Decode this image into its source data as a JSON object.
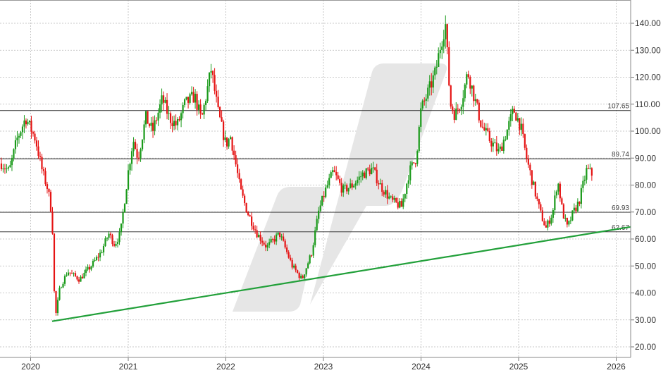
{
  "chart_data": {
    "type": "candlestick",
    "title": "",
    "xlabel": "",
    "ylabel": "",
    "x_ticks": [
      "2020",
      "2021",
      "2022",
      "2023",
      "2024",
      "2025",
      "2026"
    ],
    "x_range": [
      2019.7,
      2026.15
    ],
    "y_ticks": [
      "20.00",
      "30.00",
      "40.00",
      "50.00",
      "60.00",
      "70.00",
      "80.00",
      "90.00",
      "100.00",
      "110.00",
      "120.00",
      "130.00",
      "140.00"
    ],
    "ylim": [
      16,
      146
    ],
    "grid": true,
    "colors": {
      "up": "#1a9a1a",
      "down": "#e51414",
      "trend": "#22a03a",
      "level": "#222222",
      "grid": "#b8b8b8"
    },
    "horizontal_levels": [
      {
        "value": 107.65,
        "label": "107.65"
      },
      {
        "value": 89.74,
        "label": "89.74"
      },
      {
        "value": 69.93,
        "label": "69.93"
      },
      {
        "value": 62.67,
        "label": "62.67"
      }
    ],
    "trendline": {
      "x": [
        2020.22,
        2026.15
      ],
      "y": [
        29.5,
        64.5
      ]
    },
    "series": [
      {
        "price_path": [
          [
            2019.7,
            88
          ],
          [
            2019.78,
            85
          ],
          [
            2019.86,
            97
          ],
          [
            2019.95,
            105
          ],
          [
            2020.05,
            97
          ],
          [
            2020.12,
            85
          ],
          [
            2020.18,
            78
          ],
          [
            2020.22,
            68
          ],
          [
            2020.25,
            30
          ],
          [
            2020.3,
            42
          ],
          [
            2020.38,
            48
          ],
          [
            2020.5,
            45
          ],
          [
            2020.62,
            50
          ],
          [
            2020.72,
            55
          ],
          [
            2020.8,
            62
          ],
          [
            2020.86,
            58
          ],
          [
            2020.92,
            62
          ],
          [
            2021.0,
            85
          ],
          [
            2021.05,
            97
          ],
          [
            2021.1,
            90
          ],
          [
            2021.18,
            105
          ],
          [
            2021.25,
            100
          ],
          [
            2021.35,
            112
          ],
          [
            2021.42,
            105
          ],
          [
            2021.5,
            102
          ],
          [
            2021.58,
            110
          ],
          [
            2021.68,
            113
          ],
          [
            2021.75,
            104
          ],
          [
            2021.85,
            123
          ],
          [
            2021.92,
            107
          ],
          [
            2022.0,
            95
          ],
          [
            2022.05,
            98
          ],
          [
            2022.15,
            78
          ],
          [
            2022.22,
            70
          ],
          [
            2022.32,
            62
          ],
          [
            2022.42,
            57
          ],
          [
            2022.55,
            62
          ],
          [
            2022.68,
            50
          ],
          [
            2022.78,
            45
          ],
          [
            2022.88,
            55
          ],
          [
            2022.95,
            70
          ],
          [
            2023.02,
            78
          ],
          [
            2023.1,
            85
          ],
          [
            2023.2,
            78
          ],
          [
            2023.3,
            80
          ],
          [
            2023.4,
            84
          ],
          [
            2023.5,
            86
          ],
          [
            2023.58,
            80
          ],
          [
            2023.7,
            74
          ],
          [
            2023.8,
            72
          ],
          [
            2023.88,
            85
          ],
          [
            2023.95,
            90
          ],
          [
            2024.0,
            108
          ],
          [
            2024.08,
            115
          ],
          [
            2024.15,
            122
          ],
          [
            2024.2,
            132
          ],
          [
            2024.25,
            140
          ],
          [
            2024.3,
            110
          ],
          [
            2024.35,
            106
          ],
          [
            2024.42,
            112
          ],
          [
            2024.48,
            122
          ],
          [
            2024.55,
            112
          ],
          [
            2024.62,
            102
          ],
          [
            2024.7,
            97
          ],
          [
            2024.8,
            92
          ],
          [
            2024.88,
            100
          ],
          [
            2024.95,
            108
          ],
          [
            2025.02,
            102
          ],
          [
            2025.08,
            90
          ],
          [
            2025.15,
            80
          ],
          [
            2025.22,
            70
          ],
          [
            2025.28,
            64
          ],
          [
            2025.35,
            70
          ],
          [
            2025.4,
            82
          ],
          [
            2025.45,
            70
          ],
          [
            2025.5,
            64
          ],
          [
            2025.55,
            69
          ],
          [
            2025.62,
            74
          ],
          [
            2025.7,
            86
          ],
          [
            2025.75,
            84
          ]
        ]
      }
    ]
  }
}
